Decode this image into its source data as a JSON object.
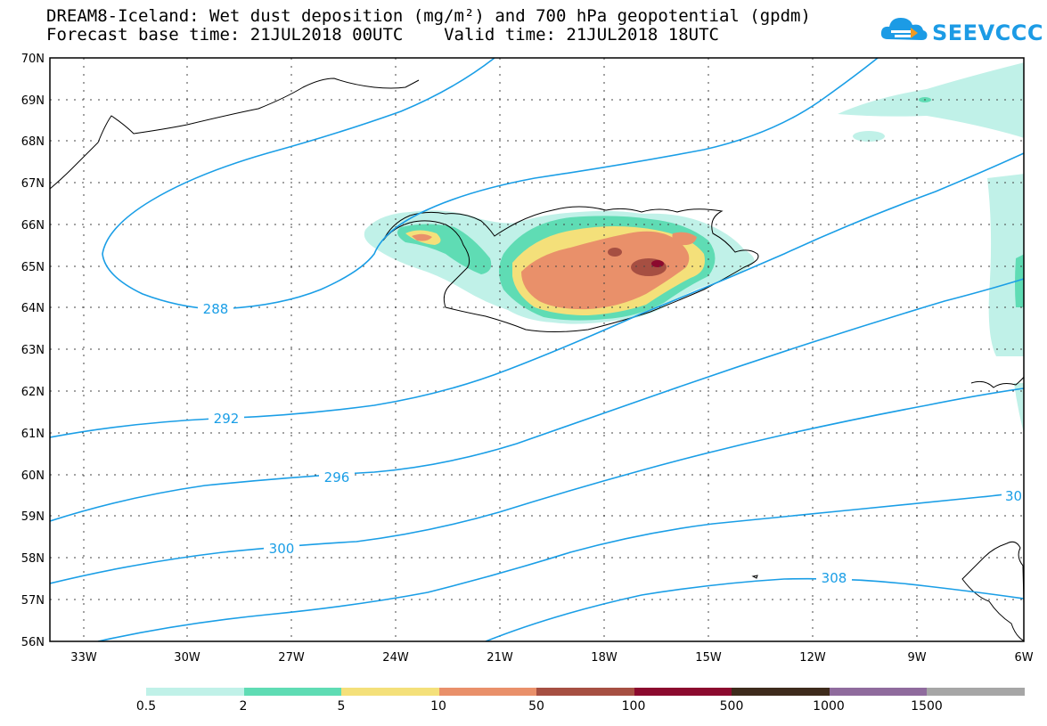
{
  "title": {
    "line1": "DREAM8-Iceland: Wet dust deposition (mg/m²) and 700 hPa geopotential (gpdm)",
    "line2": "Forecast base time: 21JUL2018 00UTC    Valid time: 21JUL2018 18UTC"
  },
  "logo": {
    "text": "SEEVCCC",
    "icon": "cloud-icon"
  },
  "map": {
    "lon_range": [
      -34,
      -6
    ],
    "lat_range": [
      56,
      70
    ],
    "lat_ticks": [
      "70N",
      "69N",
      "68N",
      "67N",
      "66N",
      "65N",
      "64N",
      "63N",
      "62N",
      "61N",
      "60N",
      "59N",
      "58N",
      "57N",
      "56N"
    ],
    "lon_ticks": [
      "33W",
      "30W",
      "27W",
      "24W",
      "21W",
      "18W",
      "15W",
      "12W",
      "9W",
      "6W"
    ],
    "contour_color": "#1a9ee6",
    "contour_labels": [
      "288",
      "292",
      "296",
      "300",
      "30",
      "308"
    ]
  },
  "legend": {
    "labels": [
      "0.5",
      "2",
      "5",
      "10",
      "50",
      "100",
      "500",
      "1000",
      "1500"
    ],
    "colors": [
      "#c0f1e8",
      "#5fdcb4",
      "#f4e07a",
      "#e9906a",
      "#a64f42",
      "#8b0a2e",
      "#3e2b1c",
      "#8f6b9d",
      "#a6a6a6"
    ]
  }
}
